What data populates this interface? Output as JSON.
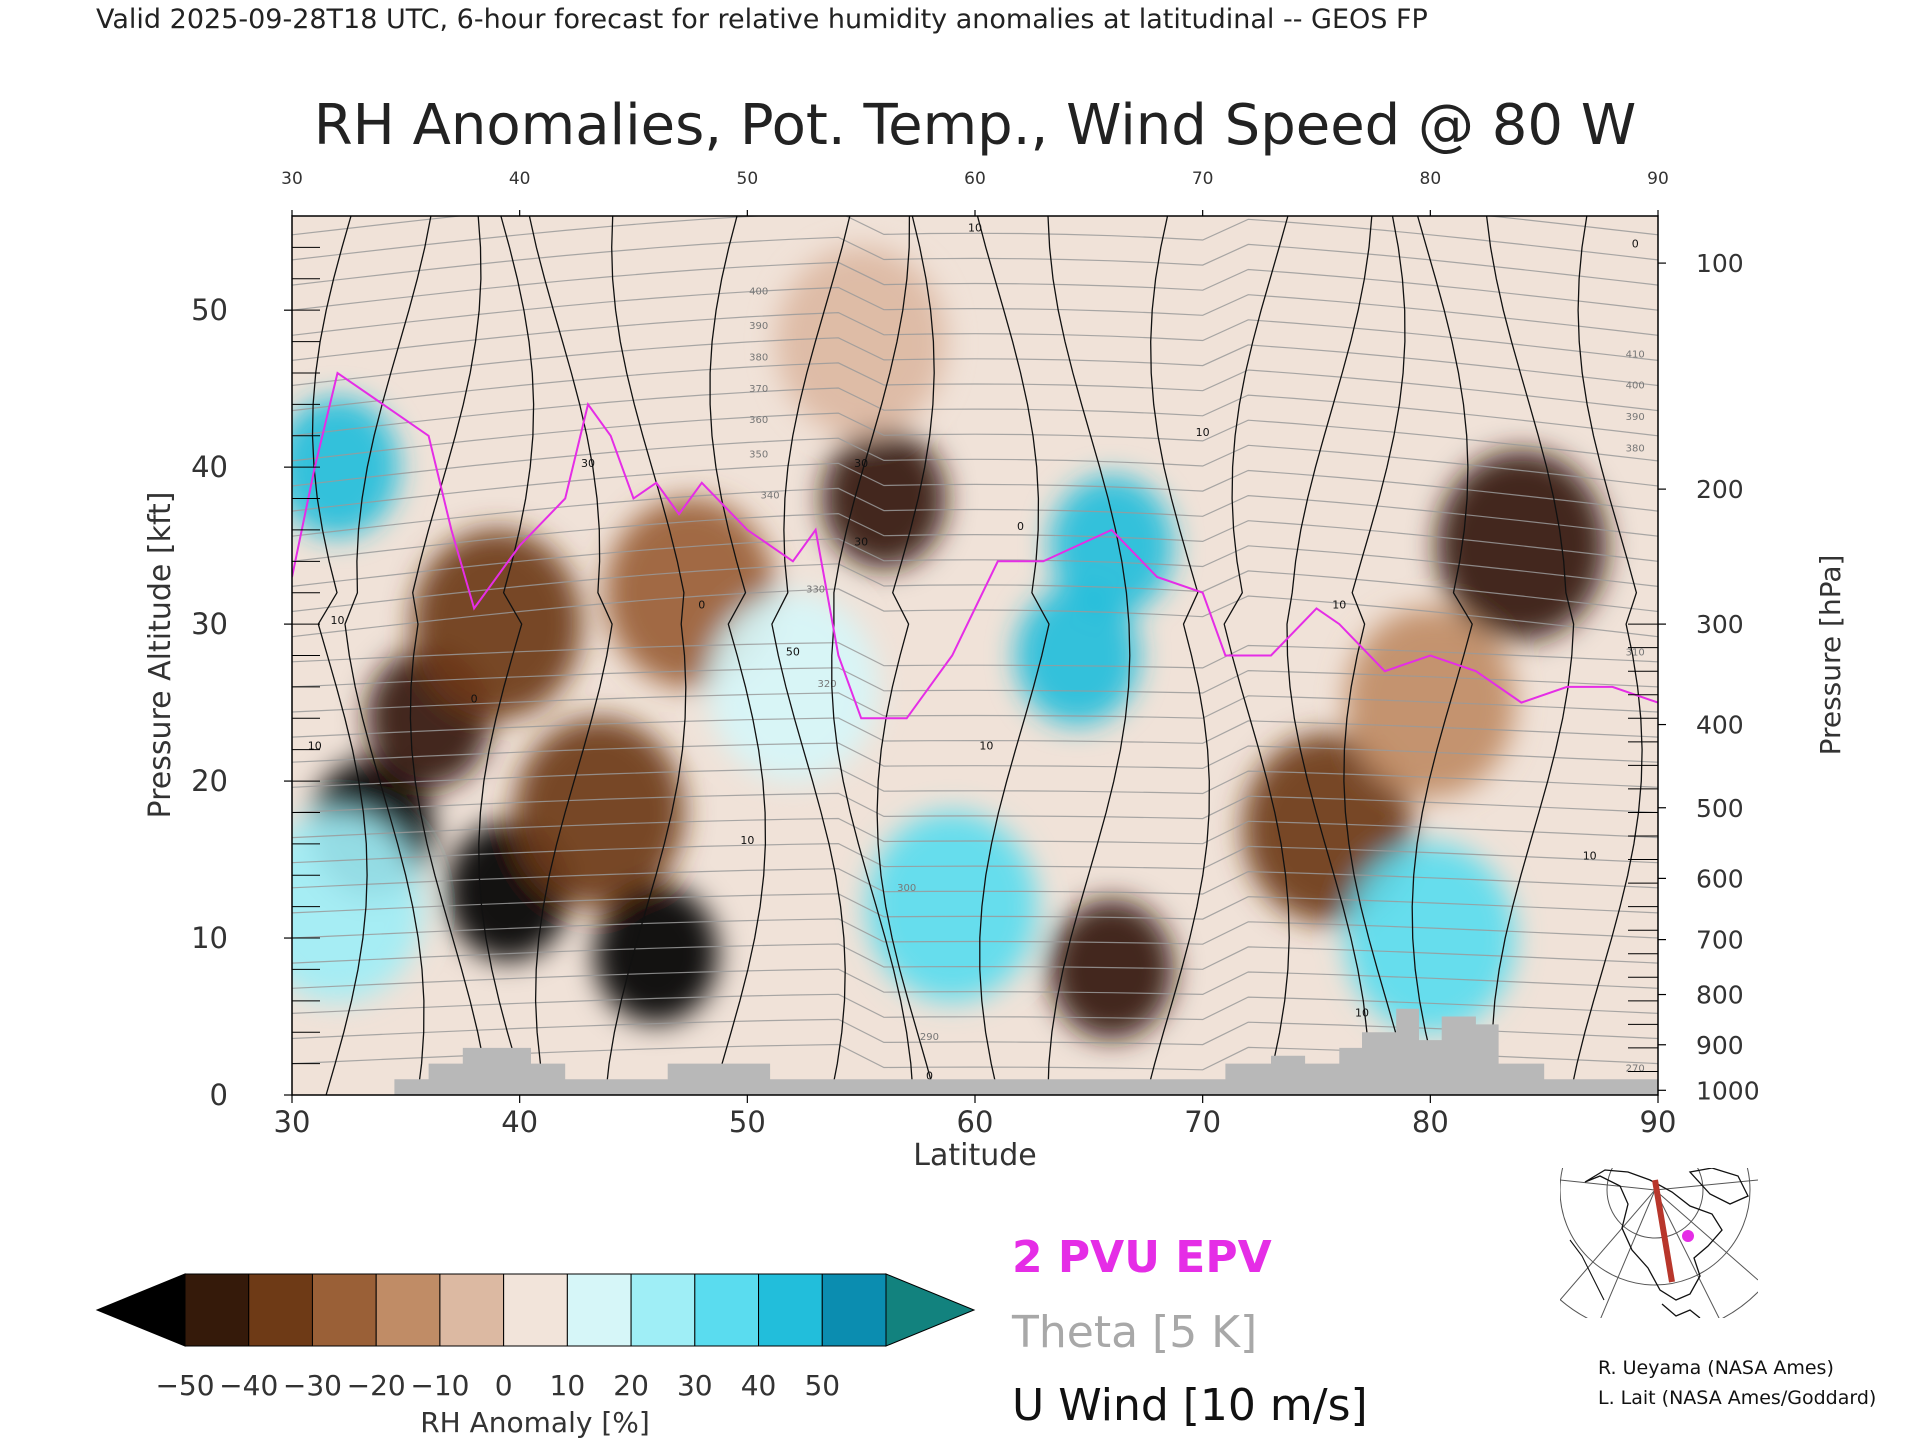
{
  "header": "Valid 2025-09-28T18 UTC, 6-hour forecast for relative humidity anomalies at latitudinal -- GEOS FP",
  "chart_data": {
    "type": "heatmap",
    "title": "RH Anomalies, Pot. Temp., Wind Speed @ 80 W",
    "xlabel": "Latitude",
    "ylabel_left": "Pressure Altitude [kft]",
    "ylabel_right": "Pressure [hPa]",
    "xlim": [
      30,
      90
    ],
    "ylim": [
      0,
      56
    ],
    "x_ticks": [
      "30",
      "40",
      "50",
      "60",
      "70",
      "80",
      "90"
    ],
    "top_x_ticks": [
      "30",
      "40",
      "50",
      "60",
      "70",
      "80",
      "90"
    ],
    "y_ticks_left": [
      "0",
      "10",
      "20",
      "30",
      "40",
      "50"
    ],
    "y_ticks_right": [
      {
        "label": "100",
        "kft": 53.0
      },
      {
        "label": "200",
        "kft": 38.6
      },
      {
        "label": "300",
        "kft": 30.0
      },
      {
        "label": "400",
        "kft": 23.6
      },
      {
        "label": "500",
        "kft": 18.3
      },
      {
        "label": "600",
        "kft": 13.8
      },
      {
        "label": "700",
        "kft": 9.9
      },
      {
        "label": "800",
        "kft": 6.4
      },
      {
        "label": "900",
        "kft": 3.2
      },
      {
        "label": "1000",
        "kft": 0.3
      }
    ],
    "colorbar": {
      "label": "RH Anomaly [%]",
      "tick_labels": [
        "−50",
        "−40",
        "−30",
        "−20",
        "−10",
        "0",
        "10",
        "20",
        "30",
        "40",
        "50"
      ],
      "bounds": [
        -50,
        -40,
        -30,
        -20,
        -10,
        0,
        10,
        20,
        30,
        40,
        50
      ],
      "colors": [
        "#351a0a",
        "#6e3a16",
        "#9a6037",
        "#c08c66",
        "#dcb9a2",
        "#f2e4da",
        "#d6f6f8",
        "#9feef6",
        "#5adcef",
        "#22bedb",
        "#0b8db0"
      ],
      "under_color": "#000000",
      "over_color": "#12827e"
    },
    "legend": [
      {
        "label": "2 PVU EPV",
        "color": "#e52de6"
      },
      {
        "label": "Theta [5 K]",
        "color": "#a8a8a8"
      },
      {
        "label": "U Wind [10 m/s]",
        "color": "#000000"
      }
    ],
    "rh_anomaly_features": [
      {
        "lat": 33.5,
        "kft": 17,
        "value": -55
      },
      {
        "lat": 36,
        "kft": 24,
        "value": -48
      },
      {
        "lat": 39.5,
        "kft": 13,
        "value": -52
      },
      {
        "lat": 39,
        "kft": 30,
        "value": -38
      },
      {
        "lat": 43.5,
        "kft": 18,
        "value": -35
      },
      {
        "lat": 46,
        "kft": 9,
        "value": -52
      },
      {
        "lat": 47.5,
        "kft": 32,
        "value": -22
      },
      {
        "lat": 52,
        "kft": 26,
        "value": 18
      },
      {
        "lat": 56,
        "kft": 38,
        "value": -45
      },
      {
        "lat": 64.5,
        "kft": 28,
        "value": 45
      },
      {
        "lat": 66,
        "kft": 35,
        "value": 50
      },
      {
        "lat": 66,
        "kft": 8,
        "value": -48
      },
      {
        "lat": 59,
        "kft": 12,
        "value": 35
      },
      {
        "lat": 75.5,
        "kft": 17,
        "value": -38
      },
      {
        "lat": 80,
        "kft": 25,
        "value": -18
      },
      {
        "lat": 84,
        "kft": 35,
        "value": -40
      },
      {
        "lat": 80,
        "kft": 10,
        "value": 40
      },
      {
        "lat": 32,
        "kft": 40,
        "value": 50
      },
      {
        "lat": 32,
        "kft": 12,
        "value": 30
      },
      {
        "lat": 55,
        "kft": 48,
        "value": -8
      }
    ],
    "theta_contour_labels": [
      "400",
      "390",
      "380",
      "370",
      "360",
      "350",
      "340",
      "330",
      "320",
      "300",
      "290",
      "410",
      "400",
      "390",
      "380",
      "310",
      "270"
    ],
    "wind_contour_labels": [
      "10",
      "10",
      "0",
      "10",
      "30",
      "0",
      "10",
      "30",
      "30",
      "50",
      "0",
      "10",
      "10",
      "0",
      "10",
      "10",
      "10",
      "0",
      "0",
      "10"
    ],
    "epv_2pvu": [
      [
        30,
        33
      ],
      [
        31,
        40
      ],
      [
        32,
        46
      ],
      [
        34,
        44
      ],
      [
        36,
        42
      ],
      [
        37,
        36
      ],
      [
        38,
        31
      ],
      [
        40,
        35
      ],
      [
        42,
        38
      ],
      [
        43,
        44
      ],
      [
        44,
        42
      ],
      [
        45,
        38
      ],
      [
        46,
        39
      ],
      [
        47,
        37
      ],
      [
        48,
        39
      ],
      [
        50,
        36
      ],
      [
        52,
        34
      ],
      [
        53,
        36
      ],
      [
        54,
        28
      ],
      [
        55,
        24
      ],
      [
        57,
        24
      ],
      [
        59,
        28
      ],
      [
        61,
        34
      ],
      [
        63,
        34
      ],
      [
        64.5,
        35
      ],
      [
        66,
        36
      ],
      [
        68,
        33
      ],
      [
        70,
        32
      ],
      [
        71,
        28
      ],
      [
        73,
        28
      ],
      [
        75,
        31
      ],
      [
        76,
        30
      ],
      [
        78,
        27
      ],
      [
        80,
        28
      ],
      [
        82,
        27
      ],
      [
        84,
        25
      ],
      [
        86,
        26
      ],
      [
        88,
        26
      ],
      [
        90,
        25
      ]
    ],
    "terrain_kft": [
      [
        34.5,
        1
      ],
      [
        36,
        2
      ],
      [
        37.5,
        3
      ],
      [
        39,
        3
      ],
      [
        40.5,
        2
      ],
      [
        42,
        1
      ],
      [
        44,
        1
      ],
      [
        46.5,
        2
      ],
      [
        49,
        2
      ],
      [
        51,
        1
      ],
      [
        53.5,
        1
      ],
      [
        58,
        1
      ],
      [
        62,
        1
      ],
      [
        65,
        1
      ],
      [
        69,
        1
      ],
      [
        71,
        2
      ],
      [
        73,
        2.5
      ],
      [
        74.5,
        2
      ],
      [
        76,
        3
      ],
      [
        77,
        4
      ],
      [
        78.5,
        5.5
      ],
      [
        79.5,
        3.5
      ],
      [
        80.5,
        5
      ],
      [
        82,
        4.5
      ],
      [
        83,
        2
      ],
      [
        85,
        1
      ],
      [
        88,
        1
      ]
    ],
    "grid": false
  },
  "map_inset": {
    "section_line_color": "#b8362b",
    "marker_color": "#e52de6"
  },
  "credits": [
    "R. Ueyama (NASA Ames)",
    "L. Lait (NASA Ames/Goddard)"
  ]
}
